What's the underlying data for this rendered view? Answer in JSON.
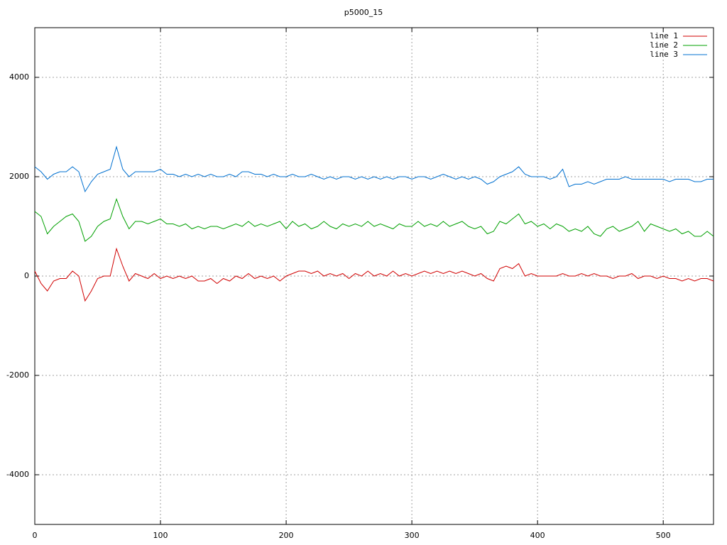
{
  "chart_data": {
    "type": "line",
    "title": "p5000_15",
    "x": [
      0,
      5,
      10,
      15,
      20,
      25,
      30,
      35,
      40,
      45,
      50,
      55,
      60,
      65,
      70,
      75,
      80,
      85,
      90,
      95,
      100,
      105,
      110,
      115,
      120,
      125,
      130,
      135,
      140,
      145,
      150,
      155,
      160,
      165,
      170,
      175,
      180,
      185,
      190,
      195,
      200,
      205,
      210,
      215,
      220,
      225,
      230,
      235,
      240,
      245,
      250,
      255,
      260,
      265,
      270,
      275,
      280,
      285,
      290,
      295,
      300,
      305,
      310,
      315,
      320,
      325,
      330,
      335,
      340,
      345,
      350,
      355,
      360,
      365,
      370,
      375,
      380,
      385,
      390,
      395,
      400,
      405,
      410,
      415,
      420,
      425,
      430,
      435,
      440,
      445,
      450,
      455,
      460,
      465,
      470,
      475,
      480,
      485,
      490,
      495,
      500,
      505,
      510,
      515,
      520,
      525,
      530,
      535,
      540
    ],
    "series": [
      {
        "name": "line 1",
        "color": "#d00000",
        "values": [
          100,
          -150,
          -300,
          -100,
          -50,
          -50,
          100,
          0,
          -500,
          -300,
          -50,
          0,
          0,
          550,
          200,
          -100,
          50,
          0,
          -50,
          50,
          -50,
          0,
          -50,
          0,
          -50,
          0,
          -100,
          -100,
          -50,
          -150,
          -50,
          -100,
          0,
          -50,
          50,
          -50,
          0,
          -50,
          0,
          -100,
          0,
          50,
          100,
          100,
          50,
          100,
          0,
          50,
          0,
          50,
          -50,
          50,
          0,
          100,
          0,
          50,
          0,
          100,
          0,
          50,
          0,
          50,
          100,
          50,
          100,
          50,
          100,
          50,
          100,
          50,
          0,
          50,
          -50,
          -100,
          150,
          200,
          150,
          250,
          0,
          50,
          0,
          0,
          0,
          0,
          50,
          0,
          0,
          50,
          0,
          50,
          0,
          0,
          -50,
          0,
          0,
          50,
          -50,
          0,
          0,
          -50,
          0,
          -50,
          -50,
          -100,
          -50,
          -100,
          -50,
          -50,
          -100
        ]
      },
      {
        "name": "line 2",
        "color": "#00a000",
        "values": [
          1300,
          1200,
          850,
          1000,
          1100,
          1200,
          1250,
          1100,
          700,
          800,
          1000,
          1100,
          1150,
          1550,
          1200,
          950,
          1100,
          1100,
          1050,
          1100,
          1150,
          1050,
          1050,
          1000,
          1050,
          950,
          1000,
          950,
          1000,
          1000,
          950,
          1000,
          1050,
          1000,
          1100,
          1000,
          1050,
          1000,
          1050,
          1100,
          950,
          1100,
          1000,
          1050,
          950,
          1000,
          1100,
          1000,
          950,
          1050,
          1000,
          1050,
          1000,
          1100,
          1000,
          1050,
          1000,
          950,
          1050,
          1000,
          1000,
          1100,
          1000,
          1050,
          1000,
          1100,
          1000,
          1050,
          1100,
          1000,
          950,
          1000,
          850,
          900,
          1100,
          1050,
          1150,
          1250,
          1050,
          1100,
          1000,
          1050,
          950,
          1050,
          1000,
          900,
          950,
          900,
          1000,
          850,
          800,
          950,
          1000,
          900,
          950,
          1000,
          1100,
          900,
          1050,
          1000,
          950,
          900,
          950,
          850,
          900,
          800,
          800,
          900,
          800
        ]
      },
      {
        "name": "line 3",
        "color": "#0070d0",
        "values": [
          2200,
          2100,
          1950,
          2050,
          2100,
          2100,
          2200,
          2100,
          1700,
          1900,
          2050,
          2100,
          2150,
          2600,
          2150,
          2000,
          2100,
          2100,
          2100,
          2100,
          2150,
          2050,
          2050,
          2000,
          2050,
          2000,
          2050,
          2000,
          2050,
          2000,
          2000,
          2050,
          2000,
          2100,
          2100,
          2050,
          2050,
          2000,
          2050,
          2000,
          2000,
          2050,
          2000,
          2000,
          2050,
          2000,
          1950,
          2000,
          1950,
          2000,
          2000,
          1950,
          2000,
          1950,
          2000,
          1950,
          2000,
          1950,
          2000,
          2000,
          1950,
          2000,
          2000,
          1950,
          2000,
          2050,
          2000,
          1950,
          2000,
          1950,
          2000,
          1950,
          1850,
          1900,
          2000,
          2050,
          2100,
          2200,
          2050,
          2000,
          2000,
          2000,
          1950,
          2000,
          2150,
          1800,
          1850,
          1850,
          1900,
          1850,
          1900,
          1950,
          1950,
          1950,
          2000,
          1950,
          1950,
          1950,
          1950,
          1950,
          1950,
          1900,
          1950,
          1950,
          1950,
          1900,
          1900,
          1950,
          1950
        ]
      }
    ],
    "xlim": [
      0,
      540
    ],
    "ylim": [
      -5000,
      5000
    ],
    "xticks": [
      0,
      100,
      200,
      300,
      400,
      500
    ],
    "yticks": [
      -4000,
      -2000,
      0,
      2000,
      4000
    ],
    "grid": true,
    "legend": "top-right"
  }
}
